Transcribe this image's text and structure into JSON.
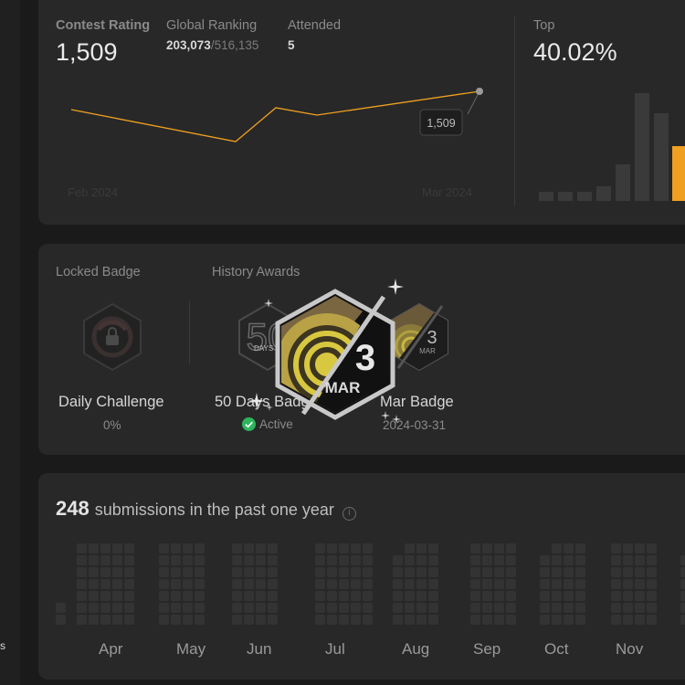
{
  "rail": {
    "text": "s"
  },
  "rating": {
    "contest_label": "Contest Rating",
    "contest_value": "1,509",
    "global_label": "Global Ranking",
    "global_rank": "203,073",
    "global_total": "/516,135",
    "attended_label": "Attended",
    "attended_value": "5",
    "tooltip_value": "1,509",
    "x_start": "Feb 2024",
    "x_end": "Mar 2024",
    "top_label": "Top",
    "top_value": "40.02%"
  },
  "badges": {
    "locked_label": "Locked Badge",
    "history_label": "History Awards",
    "locked": {
      "title": "Daily Challenge",
      "progress": "0%"
    },
    "days50": {
      "title": "50 Days Badge",
      "days_num": "50",
      "days_text": "DAYS",
      "status": "Active"
    },
    "mar": {
      "title": "Mar Badge",
      "date": "2024-03-31",
      "num": "3",
      "month": "MAR"
    }
  },
  "submissions": {
    "count": "248",
    "label": "submissions in the past one year",
    "months": [
      "Apr",
      "May",
      "Jun",
      "Jul",
      "Aug",
      "Sep",
      "Oct",
      "Nov"
    ]
  },
  "colors": {
    "accent": "#f0a020",
    "active_green": "#2db55d",
    "badge_gold": "#e8d13a"
  }
}
